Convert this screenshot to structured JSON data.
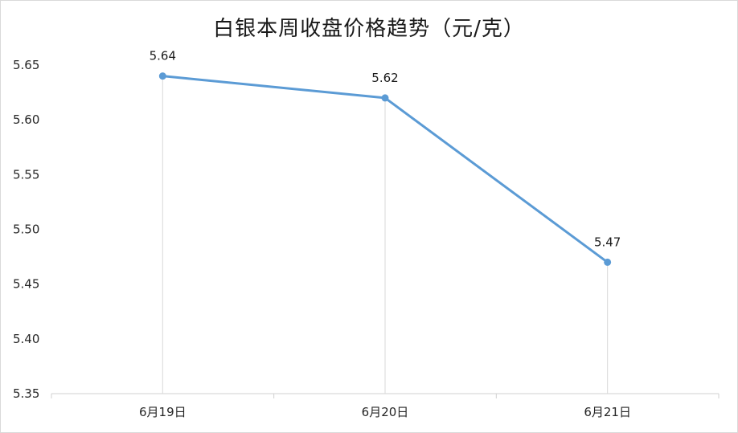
{
  "chart_data": {
    "type": "line",
    "title": "白银本周收盘价格趋势（元/克）",
    "categories": [
      "6月19日",
      "6月20日",
      "6月21日"
    ],
    "series": [
      {
        "values": [
          5.64,
          5.62,
          5.47
        ]
      }
    ],
    "data_labels": [
      "5.64",
      "5.62",
      "5.47"
    ],
    "yticks": [
      "5.35",
      "5.40",
      "5.45",
      "5.50",
      "5.55",
      "5.60",
      "5.65"
    ],
    "ylim": [
      5.35,
      5.65
    ],
    "xlabel": "",
    "ylabel": "",
    "grid": false,
    "drop_lines": true,
    "line_color": "#5b9bd5"
  }
}
